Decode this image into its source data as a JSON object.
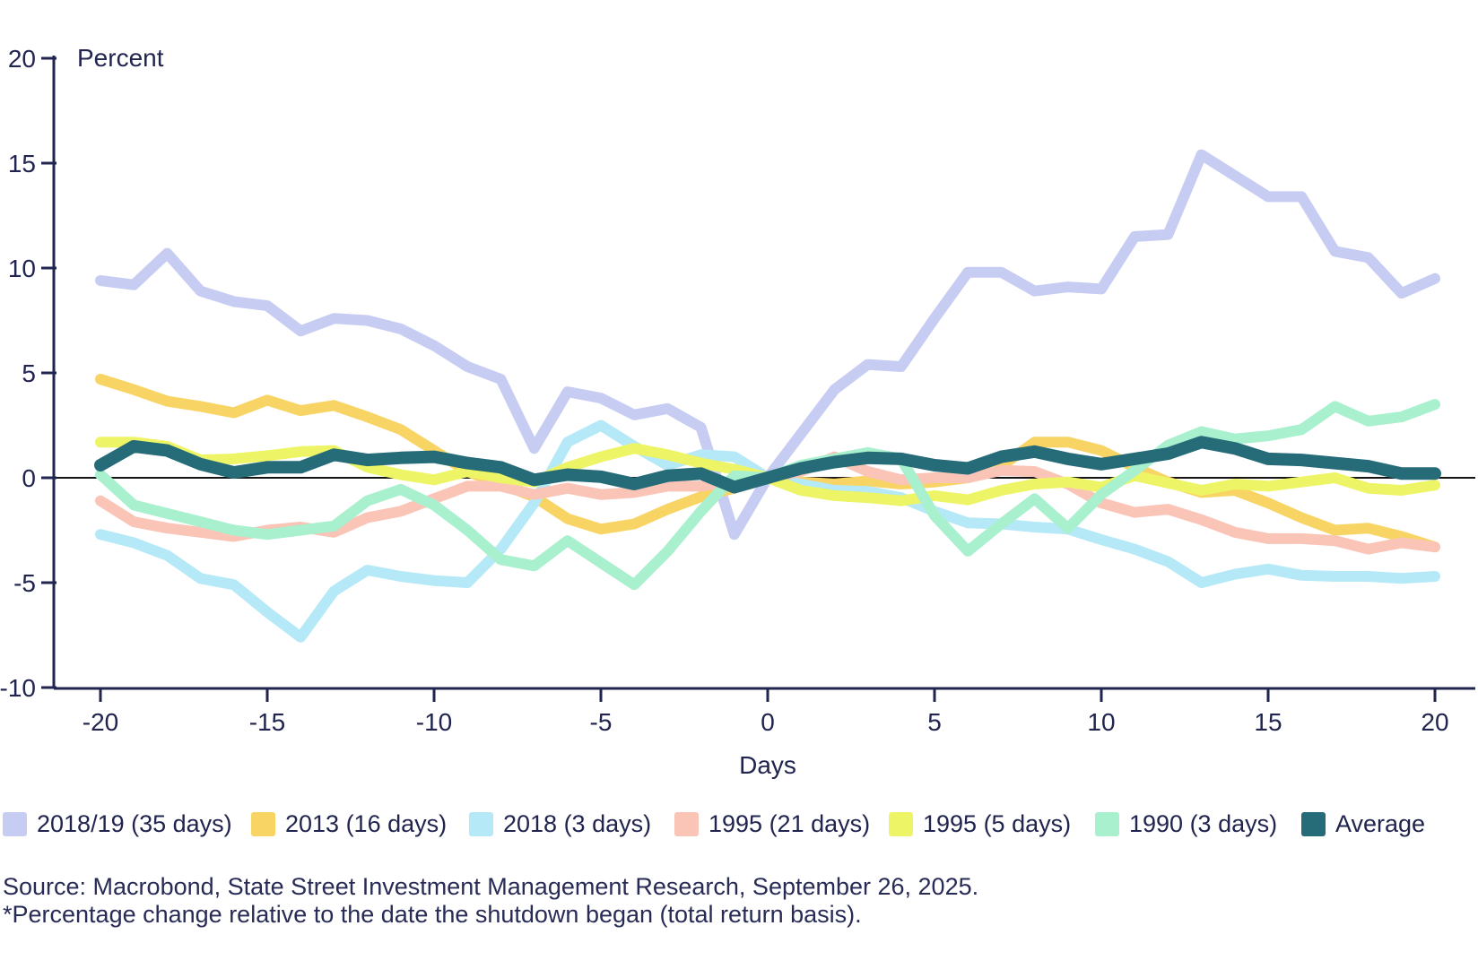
{
  "chart": {
    "y_axis_title": "Percent",
    "x_axis_title": "Days"
  },
  "footer": {
    "source_line": "Source: Macrobond, State Street Investment Management Research, September 26, 2025.",
    "note_line": "*Percentage change relative to the date the shutdown began (total return basis)."
  },
  "colors": {
    "axis": "#20244e",
    "zero_line": "#141414",
    "text": "#20244e",
    "background": "#ffffff"
  },
  "legend": {
    "items": [
      {
        "label": "2018/19 (35 days)",
        "color": "#c7ccf3"
      },
      {
        "label": "2013 (16 days)",
        "color": "#f8d464"
      },
      {
        "label": "2018 (3 days)",
        "color": "#b5e9f8"
      },
      {
        "label": "1995 (21 days)",
        "color": "#fac4b6"
      },
      {
        "label": "1995 (5 days)",
        "color": "#edf566"
      },
      {
        "label": "1990 (3 days)",
        "color": "#a9f0ce"
      },
      {
        "label": "Average",
        "color": "#256b78"
      }
    ]
  },
  "chart_data": {
    "type": "line",
    "title": "",
    "xlabel": "Days",
    "ylabel": "Percent",
    "xlim": [
      -21.4,
      21.2
    ],
    "ylim": [
      -10,
      20
    ],
    "x_ticks": [
      -20,
      -15,
      -10,
      -5,
      0,
      5,
      10,
      15,
      20
    ],
    "y_ticks": [
      20,
      15,
      10,
      5,
      0,
      -5,
      -10
    ],
    "grid": false,
    "zero_line": true,
    "legend_position": "bottom",
    "x": [
      -20,
      -19,
      -18,
      -17,
      -16,
      -15,
      -14,
      -13,
      -12,
      -11,
      -10,
      -9,
      -8,
      -7,
      -6,
      -5,
      -4,
      -3,
      -2,
      -1,
      0,
      1,
      2,
      3,
      4,
      5,
      6,
      7,
      8,
      9,
      10,
      11,
      12,
      13,
      14,
      15,
      16,
      17,
      18,
      19,
      20
    ],
    "series": [
      {
        "name": "2018/19 (35 days)",
        "color": "#c7ccf3",
        "line_width": 12,
        "values": [
          9.4,
          9.2,
          10.7,
          8.9,
          8.4,
          8.2,
          7.0,
          7.6,
          7.5,
          7.1,
          6.3,
          5.3,
          4.7,
          1.4,
          4.1,
          3.8,
          3.0,
          3.3,
          2.4,
          -2.7,
          0.0,
          2.1,
          4.2,
          5.4,
          5.3,
          7.6,
          9.8,
          9.8,
          8.9,
          9.1,
          9.0,
          11.5,
          11.6,
          15.4,
          14.4,
          13.4,
          13.4,
          10.8,
          10.5,
          8.8,
          9.5
        ]
      },
      {
        "name": "2013 (16 days)",
        "color": "#f8d464",
        "line_width": 12,
        "values": [
          4.7,
          4.2,
          3.65,
          3.4,
          3.1,
          3.7,
          3.2,
          3.45,
          2.9,
          2.3,
          1.3,
          0.3,
          -0.3,
          -0.9,
          -1.95,
          -2.45,
          -2.2,
          -1.5,
          -0.9,
          -0.5,
          0.0,
          -0.2,
          -0.3,
          -0.15,
          -0.3,
          -0.2,
          0.0,
          0.55,
          1.7,
          1.7,
          1.3,
          0.5,
          -0.2,
          -0.7,
          -0.6,
          -1.2,
          -1.9,
          -2.5,
          -2.4,
          -2.8,
          -3.3
        ]
      },
      {
        "name": "2018 (3 days)",
        "color": "#b5e9f8",
        "line_width": 12,
        "values": [
          -2.7,
          -3.1,
          -3.7,
          -4.8,
          -5.1,
          -6.4,
          -7.6,
          -5.4,
          -4.4,
          -4.7,
          -4.9,
          -5.0,
          -3.4,
          -1.2,
          1.7,
          2.5,
          1.5,
          0.6,
          1.1,
          1.0,
          0.0,
          -0.3,
          -0.6,
          -0.65,
          -0.95,
          -1.6,
          -2.15,
          -2.2,
          -2.35,
          -2.45,
          -2.95,
          -3.4,
          -4.0,
          -5.0,
          -4.6,
          -4.35,
          -4.65,
          -4.7,
          -4.7,
          -4.8,
          -4.7
        ]
      },
      {
        "name": "1995 (21 days)",
        "color": "#fac4b6",
        "line_width": 12,
        "values": [
          -1.1,
          -2.1,
          -2.4,
          -2.6,
          -2.8,
          -2.5,
          -2.35,
          -2.6,
          -1.9,
          -1.6,
          -1.0,
          -0.4,
          -0.4,
          -0.8,
          -0.5,
          -0.8,
          -0.7,
          -0.4,
          -0.4,
          -0.15,
          0.0,
          0.3,
          1.0,
          0.3,
          -0.1,
          0.0,
          0.0,
          0.35,
          0.3,
          -0.3,
          -1.2,
          -1.65,
          -1.5,
          -2.0,
          -2.6,
          -2.9,
          -2.9,
          -3.0,
          -3.4,
          -3.1,
          -3.3
        ]
      },
      {
        "name": "1995 (5 days)",
        "color": "#edf566",
        "line_width": 12,
        "values": [
          1.7,
          1.7,
          1.5,
          0.85,
          0.9,
          1.05,
          1.25,
          1.3,
          0.5,
          0.15,
          -0.1,
          0.3,
          0.0,
          -0.2,
          0.5,
          1.0,
          1.4,
          1.1,
          0.7,
          0.4,
          0.0,
          -0.6,
          -0.85,
          -0.95,
          -1.1,
          -0.85,
          -1.05,
          -0.6,
          -0.3,
          -0.2,
          -0.45,
          0.1,
          -0.25,
          -0.6,
          -0.3,
          -0.4,
          -0.2,
          0.0,
          -0.5,
          -0.6,
          -0.35
        ]
      },
      {
        "name": "1990 (3 days)",
        "color": "#a9f0ce",
        "line_width": 12,
        "values": [
          0.15,
          -1.3,
          -1.7,
          -2.1,
          -2.5,
          -2.7,
          -2.5,
          -2.3,
          -1.1,
          -0.55,
          -1.3,
          -2.5,
          -3.9,
          -4.2,
          -3.0,
          -4.05,
          -5.1,
          -3.5,
          -1.6,
          0.1,
          0.0,
          0.6,
          0.9,
          1.2,
          0.9,
          -1.8,
          -3.5,
          -2.2,
          -1.0,
          -2.4,
          -0.8,
          0.35,
          1.55,
          2.2,
          1.85,
          2.0,
          2.3,
          3.4,
          2.7,
          2.9,
          3.5
        ]
      },
      {
        "name": "Average",
        "color": "#256b78",
        "line_width": 14,
        "values": [
          0.6,
          1.5,
          1.3,
          0.65,
          0.25,
          0.5,
          0.5,
          1.1,
          0.85,
          0.95,
          1.0,
          0.7,
          0.5,
          -0.1,
          0.15,
          0.05,
          -0.3,
          0.1,
          0.2,
          -0.45,
          0.0,
          0.45,
          0.75,
          0.95,
          0.9,
          0.6,
          0.45,
          1.0,
          1.25,
          0.9,
          0.65,
          0.9,
          1.15,
          1.7,
          1.4,
          0.9,
          0.85,
          0.7,
          0.55,
          0.2,
          0.2
        ]
      }
    ]
  }
}
